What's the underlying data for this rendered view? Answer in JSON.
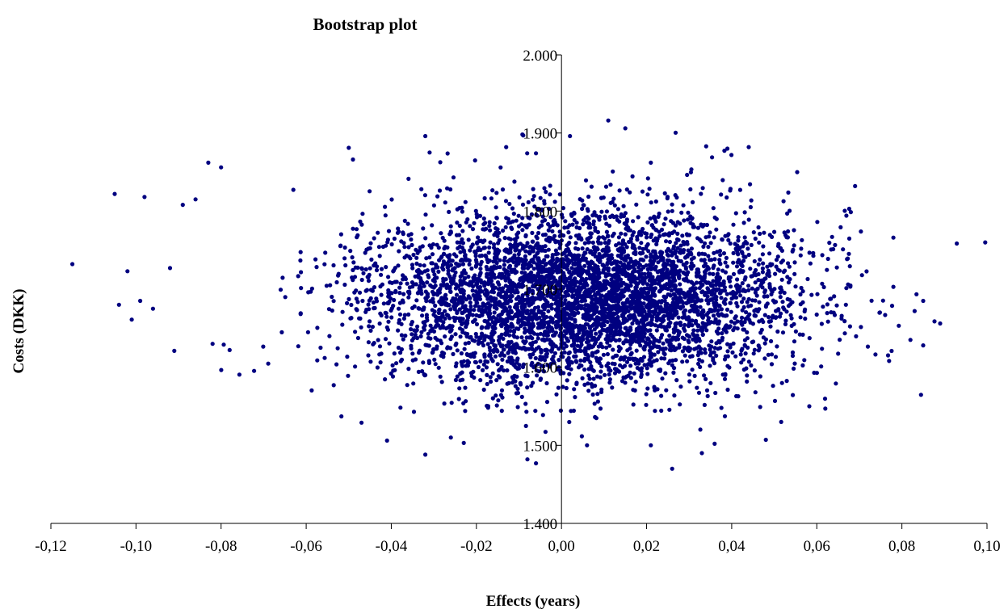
{
  "chart_data": {
    "type": "scatter",
    "title": "Bootstrap plot",
    "xlabel": "Effects (years)",
    "ylabel": "Costs (DKK)",
    "xlim": [
      -0.12,
      0.1
    ],
    "ylim": [
      1400,
      2000
    ],
    "x_ticks": [
      "-0,12",
      "-0,10",
      "-0,08",
      "-0,06",
      "-0,04",
      "-0,02",
      "0,00",
      "0,02",
      "0,04",
      "0,06",
      "0,08",
      "0,10"
    ],
    "y_ticks": [
      "1.400",
      "1.500",
      "1.600",
      "1.700",
      "1.800",
      "1.900",
      "2.000"
    ],
    "grid": false,
    "legend": "none",
    "marker_color": "#000080",
    "series": [
      {
        "distribution": "bivariate normal bootstrap replicates",
        "center": [
          0.005,
          1690
        ],
        "sd": [
          0.025,
          55
        ],
        "point_count": 5000,
        "values": [
          [
            -0.105,
            1822
          ],
          [
            -0.098,
            1818
          ],
          [
            -0.089,
            1808
          ],
          [
            -0.086,
            1815
          ],
          [
            -0.083,
            1862
          ],
          [
            -0.08,
            1856
          ],
          [
            -0.102,
            1723
          ],
          [
            -0.092,
            1727
          ],
          [
            -0.099,
            1685
          ],
          [
            -0.104,
            1680
          ],
          [
            -0.101,
            1661
          ],
          [
            -0.091,
            1621
          ],
          [
            -0.096,
            1675
          ],
          [
            -0.082,
            1630
          ],
          [
            -0.078,
            1622
          ],
          [
            -0.05,
            1881
          ],
          [
            -0.049,
            1866
          ],
          [
            -0.032,
            1896
          ],
          [
            -0.031,
            1875
          ],
          [
            -0.013,
            1882
          ],
          [
            -0.009,
            1897
          ],
          [
            -0.006,
            1874
          ],
          [
            0.002,
            1896
          ],
          [
            0.011,
            1916
          ],
          [
            0.015,
            1906
          ],
          [
            0.021,
            1862
          ],
          [
            0.034,
            1883
          ],
          [
            0.039,
            1880
          ],
          [
            0.044,
            1882
          ],
          [
            0.069,
            1832
          ],
          [
            0.078,
            1766
          ],
          [
            0.083,
            1672
          ],
          [
            0.085,
            1685
          ],
          [
            0.089,
            1656
          ],
          [
            0.085,
            1628
          ],
          [
            0.082,
            1635
          ],
          [
            0.077,
            1608
          ],
          [
            0.078,
            1703
          ],
          [
            0.062,
            1547
          ],
          [
            -0.032,
            1488
          ],
          [
            -0.041,
            1506
          ],
          [
            -0.047,
            1529
          ],
          [
            -0.008,
            1482
          ],
          [
            -0.006,
            1477
          ],
          [
            0.006,
            1500
          ],
          [
            0.026,
            1470
          ],
          [
            0.021,
            1500
          ],
          [
            0.033,
            1490
          ],
          [
            0.036,
            1502
          ],
          [
            -0.026,
            1510
          ]
        ]
      }
    ]
  }
}
